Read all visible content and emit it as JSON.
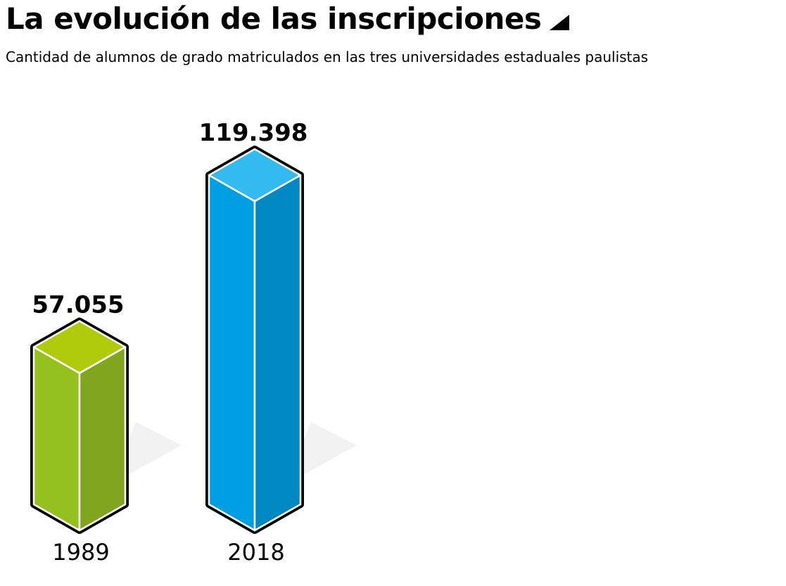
{
  "header": {
    "title": "La evolución de las inscripciones",
    "subtitle": "Cantidad de alumnos de grado matriculados en las tres universidades estaduales paulistas"
  },
  "chart_data": {
    "type": "bar",
    "title": "La evolución de las inscripciones",
    "subtitle": "Cantidad de alumnos de grado matriculados en las tres universidades estaduales paulistas",
    "categories": [
      "1989",
      "2018"
    ],
    "values": [
      57055,
      119398
    ],
    "value_labels": [
      "57.055",
      "119.398"
    ],
    "colors": [
      {
        "front": "#95c11f",
        "side": "#80a51e",
        "top": "#b0cb0b"
      },
      {
        "front": "#009fe3",
        "side": "#0088c2",
        "top": "#33bbf0"
      }
    ],
    "shadow_color": "#f2f2f2",
    "outline_color": "#000000",
    "grid": false,
    "legend": "none",
    "style": "3d-isometric-bars"
  }
}
